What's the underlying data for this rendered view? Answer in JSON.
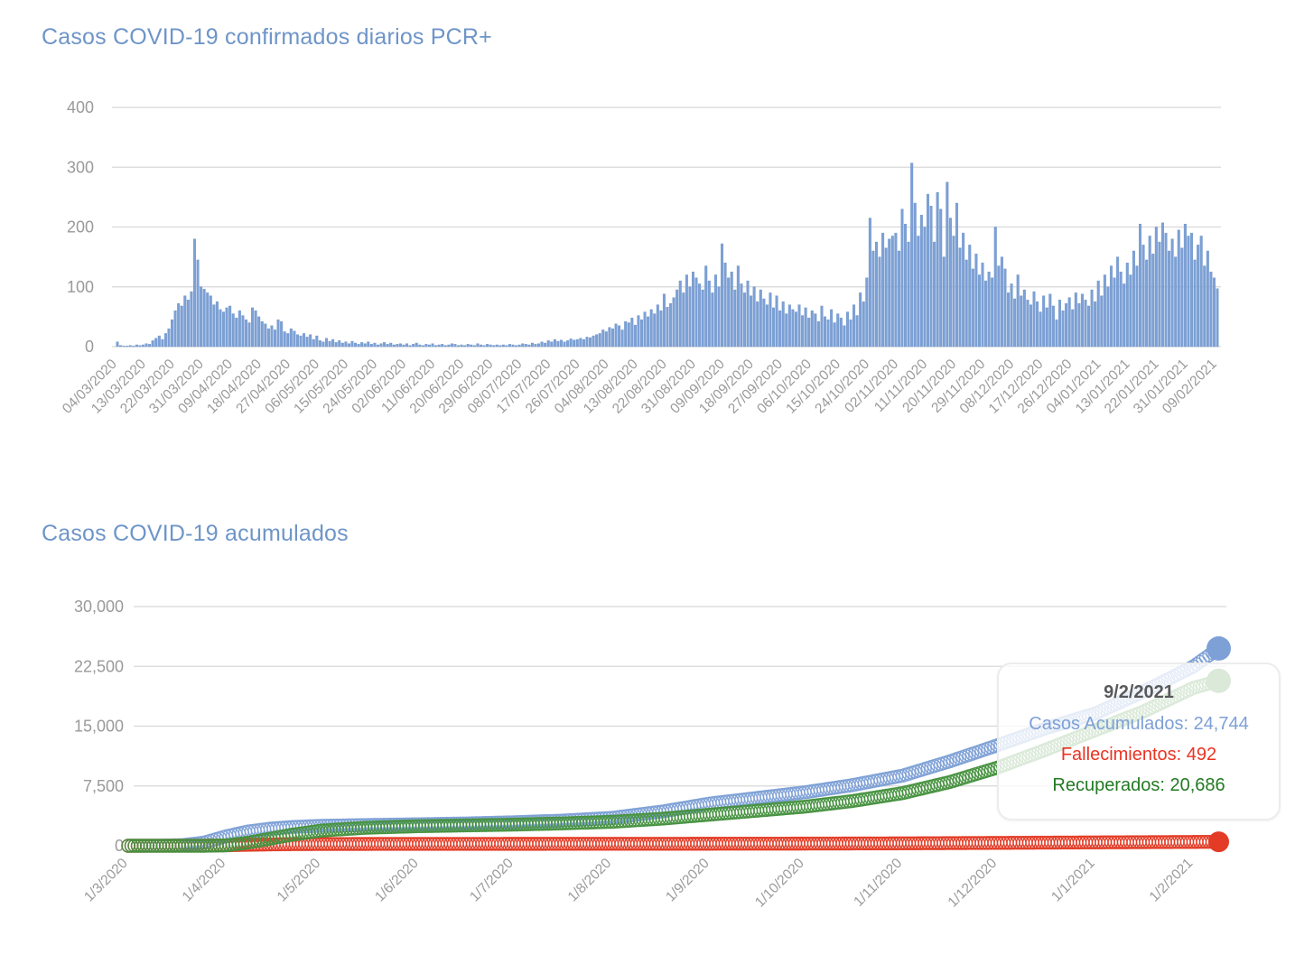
{
  "theme": {
    "title_color": "#6E95C8",
    "grid_color": "#D8D8D8",
    "tick_color": "#9A9A9A",
    "background": "#FFFFFF"
  },
  "tooltip": {
    "date": "9/2/2021",
    "acumulados": "Casos Acumulados: 24,744",
    "fallecimientos": "Fallecimientos: 492",
    "recuperados": "Recuperados: 20,686",
    "date_color": "#58595B",
    "acumulados_color": "#7DA0D6",
    "fallecimientos_color": "#EA3323",
    "recuperados_color": "#237A23"
  },
  "chart_data": [
    {
      "type": "bar",
      "title": "Casos COVID-19 confirmados diarios PCR+",
      "xlabel": "",
      "ylabel": "",
      "ylim": [
        0,
        400
      ],
      "y_tick_values": [
        0,
        100,
        200,
        300,
        400
      ],
      "y_tick_labels": [
        "0",
        "100",
        "200",
        "300",
        "400"
      ],
      "x_tick_every": 9,
      "x_tick_labels": [
        "04/03/2020",
        "13/03/2020",
        "22/03/2020",
        "31/03/2020",
        "09/04/2020",
        "18/04/2020",
        "27/04/2020",
        "06/05/2020",
        "15/05/2020",
        "24/05/2020",
        "02/06/2020",
        "11/06/2020",
        "20/06/2020",
        "29/06/2020",
        "08/07/2020",
        "17/07/2020",
        "26/07/2020",
        "04/08/2020",
        "13/08/2020",
        "22/08/2020",
        "31/08/2020",
        "09/09/2020",
        "18/09/2020",
        "27/09/2020",
        "06/10/2020",
        "15/10/2020",
        "24/10/2020",
        "02/11/2020",
        "11/11/2020",
        "20/11/2020",
        "29/11/2020",
        "08/12/2020",
        "17/12/2020",
        "26/12/2020",
        "04/01/2021",
        "13/01/2021",
        "22/01/2021",
        "31/01/2021",
        "09/02/2021"
      ],
      "bar_color": "#7DA0D6",
      "bar_edge_color": "#6D94C8",
      "start_date": "04/03/2020",
      "values": [
        8,
        2,
        1,
        1,
        2,
        1,
        3,
        2,
        3,
        5,
        4,
        10,
        14,
        18,
        12,
        22,
        30,
        45,
        60,
        72,
        68,
        85,
        78,
        92,
        180,
        145,
        100,
        96,
        90,
        85,
        70,
        75,
        62,
        58,
        65,
        68,
        55,
        48,
        60,
        52,
        45,
        40,
        65,
        60,
        50,
        42,
        38,
        30,
        35,
        28,
        45,
        42,
        25,
        22,
        30,
        26,
        20,
        18,
        22,
        16,
        20,
        12,
        18,
        10,
        8,
        14,
        9,
        12,
        7,
        10,
        6,
        8,
        5,
        9,
        6,
        4,
        7,
        5,
        8,
        4,
        6,
        3,
        5,
        7,
        4,
        6,
        3,
        4,
        5,
        3,
        5,
        2,
        4,
        6,
        3,
        2,
        4,
        3,
        5,
        2,
        3,
        4,
        2,
        3,
        5,
        4,
        2,
        3,
        2,
        4,
        3,
        2,
        5,
        3,
        2,
        4,
        3,
        2,
        3,
        2,
        3,
        2,
        4,
        3,
        2,
        3,
        5,
        4,
        3,
        6,
        4,
        5,
        8,
        6,
        10,
        8,
        12,
        9,
        11,
        8,
        10,
        13,
        11,
        12,
        14,
        12,
        16,
        15,
        18,
        20,
        22,
        28,
        25,
        32,
        30,
        38,
        35,
        28,
        42,
        40,
        48,
        36,
        52,
        45,
        58,
        50,
        62,
        55,
        70,
        60,
        88,
        66,
        72,
        82,
        95,
        110,
        90,
        120,
        100,
        125,
        115,
        105,
        95,
        135,
        110,
        90,
        120,
        100,
        172,
        140,
        115,
        125,
        95,
        135,
        105,
        90,
        110,
        85,
        100,
        75,
        95,
        80,
        70,
        90,
        65,
        85,
        60,
        75,
        55,
        70,
        62,
        58,
        70,
        52,
        65,
        48,
        60,
        55,
        42,
        68,
        50,
        45,
        62,
        40,
        55,
        48,
        35,
        58,
        45,
        70,
        52,
        90,
        75,
        115,
        215,
        160,
        175,
        150,
        190,
        165,
        180,
        185,
        190,
        160,
        230,
        205,
        175,
        307,
        240,
        185,
        220,
        200,
        255,
        235,
        175,
        258,
        230,
        150,
        275,
        215,
        185,
        240,
        165,
        190,
        145,
        170,
        130,
        155,
        120,
        140,
        110,
        125,
        115,
        200,
        135,
        150,
        130,
        90,
        105,
        80,
        120,
        85,
        95,
        78,
        70,
        92,
        75,
        58,
        85,
        65,
        88,
        68,
        45,
        78,
        60,
        72,
        82,
        62,
        90,
        72,
        88,
        78,
        68,
        95,
        75,
        110,
        85,
        120,
        100,
        135,
        115,
        150,
        125,
        105,
        140,
        120,
        160,
        135,
        205,
        170,
        145,
        185,
        155,
        200,
        175,
        207,
        190,
        160,
        180,
        150,
        195,
        165,
        205,
        185,
        190,
        145,
        170,
        185,
        135,
        160,
        125,
        115,
        97
      ]
    },
    {
      "type": "scatter",
      "title": "Casos COVID-19 acumulados",
      "xlabel": "",
      "ylabel": "",
      "ylim": [
        0,
        30000
      ],
      "y_tick_values": [
        0,
        7500,
        15000,
        22500,
        30000
      ],
      "y_tick_labels": [
        "0",
        "7,500",
        "15,000",
        "22,500",
        "30,000"
      ],
      "days_total": 346,
      "x_tick_days": [
        0,
        31,
        61,
        92,
        122,
        153,
        184,
        214,
        245,
        275,
        306,
        337
      ],
      "x_tick_labels": [
        "1/3/2020",
        "1/4/2020",
        "1/5/2020",
        "1/6/2020",
        "1/7/2020",
        "1/8/2020",
        "1/9/2020",
        "1/10/2020",
        "1/11/2020",
        "1/12/2020",
        "1/1/2021",
        "1/2/2021"
      ],
      "series": [
        {
          "name": "Casos Acumulados",
          "color": "#7DA0D6",
          "final_value": 24744,
          "anchors": [
            [
              0,
              0
            ],
            [
              10,
              10
            ],
            [
              17,
              80
            ],
            [
              24,
              400
            ],
            [
              31,
              1200
            ],
            [
              38,
              1800
            ],
            [
              45,
              2150
            ],
            [
              52,
              2350
            ],
            [
              61,
              2500
            ],
            [
              75,
              2600
            ],
            [
              92,
              2700
            ],
            [
              107,
              2800
            ],
            [
              122,
              2950
            ],
            [
              137,
              3150
            ],
            [
              153,
              3500
            ],
            [
              169,
              4300
            ],
            [
              184,
              5300
            ],
            [
              199,
              6000
            ],
            [
              214,
              6700
            ],
            [
              229,
              7600
            ],
            [
              245,
              8800
            ],
            [
              260,
              10600
            ],
            [
              275,
              12600
            ],
            [
              290,
              14700
            ],
            [
              306,
              16600
            ],
            [
              321,
              19300
            ],
            [
              337,
              22500
            ],
            [
              345,
              24744
            ]
          ]
        },
        {
          "name": "Fallecimientos",
          "color": "#E33B25",
          "final_value": 492,
          "anchors": [
            [
              0,
              0
            ],
            [
              20,
              2
            ],
            [
              24,
              10
            ],
            [
              31,
              60
            ],
            [
              38,
              120
            ],
            [
              45,
              170
            ],
            [
              52,
              200
            ],
            [
              61,
              220
            ],
            [
              92,
              235
            ],
            [
              122,
              240
            ],
            [
              153,
              245
            ],
            [
              184,
              255
            ],
            [
              214,
              270
            ],
            [
              245,
              300
            ],
            [
              275,
              360
            ],
            [
              306,
              420
            ],
            [
              337,
              480
            ],
            [
              345,
              492
            ]
          ]
        },
        {
          "name": "Recuperados",
          "color": "#46913F",
          "final_value": 20686,
          "anchors": [
            [
              0,
              0
            ],
            [
              24,
              0
            ],
            [
              31,
              50
            ],
            [
              38,
              400
            ],
            [
              45,
              900
            ],
            [
              52,
              1400
            ],
            [
              61,
              1900
            ],
            [
              75,
              2250
            ],
            [
              92,
              2450
            ],
            [
              107,
              2550
            ],
            [
              122,
              2650
            ],
            [
              137,
              2800
            ],
            [
              153,
              3000
            ],
            [
              169,
              3400
            ],
            [
              184,
              3900
            ],
            [
              199,
              4400
            ],
            [
              214,
              4900
            ],
            [
              229,
              5600
            ],
            [
              245,
              6600
            ],
            [
              260,
              8000
            ],
            [
              275,
              9800
            ],
            [
              290,
              12000
            ],
            [
              306,
              14500
            ],
            [
              321,
              16800
            ],
            [
              337,
              19800
            ],
            [
              345,
              20686
            ]
          ]
        }
      ]
    }
  ]
}
